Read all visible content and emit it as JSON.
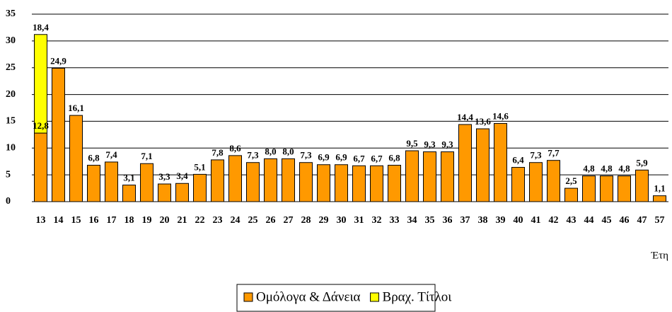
{
  "chart_data": {
    "type": "stacked_bar",
    "x_label": "Έτη",
    "categories": [
      "13",
      "14",
      "15",
      "16",
      "17",
      "18",
      "19",
      "20",
      "21",
      "22",
      "23",
      "24",
      "25",
      "26",
      "27",
      "28",
      "29",
      "30",
      "31",
      "32",
      "33",
      "34",
      "35",
      "36",
      "37",
      "38",
      "39",
      "40",
      "41",
      "42",
      "43",
      "44",
      "45",
      "46",
      "47",
      "57"
    ],
    "series": [
      {
        "name": "Ομόλογα & Δάνεια",
        "color": "#ff9900",
        "values": [
          12.8,
          24.9,
          16.1,
          6.8,
          7.4,
          3.1,
          7.1,
          3.3,
          3.4,
          5.1,
          7.8,
          8.6,
          7.3,
          8.0,
          8.0,
          7.3,
          6.9,
          6.9,
          6.7,
          6.7,
          6.8,
          9.5,
          9.3,
          9.3,
          14.4,
          13.6,
          14.6,
          6.4,
          7.3,
          7.7,
          2.5,
          4.8,
          4.8,
          4.8,
          5.9,
          1.1
        ],
        "value_labels": [
          "12,8",
          "24,9",
          "16,1",
          "6,8",
          "7,4",
          "3,1",
          "7,1",
          "3,3",
          "3,4",
          "5,1",
          "7,8",
          "8,6",
          "7,3",
          "8,0",
          "8,0",
          "7,3",
          "6,9",
          "6,9",
          "6,7",
          "6,7",
          "6,8",
          "9,5",
          "9,3",
          "9,3",
          "14,4",
          "13,6",
          "14,6",
          "6,4",
          "7,3",
          "7,7",
          "2,5",
          "4,8",
          "4,8",
          "4,8",
          "5,9",
          "1,1"
        ]
      },
      {
        "name": "Βραχ. Τίτλοι",
        "color": "#ffff00",
        "values": [
          18.4,
          null,
          null,
          null,
          null,
          null,
          null,
          null,
          null,
          null,
          null,
          null,
          null,
          null,
          null,
          null,
          null,
          null,
          null,
          null,
          null,
          null,
          null,
          null,
          null,
          null,
          null,
          null,
          null,
          null,
          null,
          null,
          null,
          null,
          null,
          null
        ],
        "value_labels": [
          "18,4",
          null,
          null,
          null,
          null,
          null,
          null,
          null,
          null,
          null,
          null,
          null,
          null,
          null,
          null,
          null,
          null,
          null,
          null,
          null,
          null,
          null,
          null,
          null,
          null,
          null,
          null,
          null,
          null,
          null,
          null,
          null,
          null,
          null,
          null,
          null
        ]
      }
    ],
    "ylim": [
      0,
      35
    ],
    "yticks": [
      0,
      5,
      10,
      15,
      20,
      25,
      30,
      35
    ],
    "grid": true
  }
}
